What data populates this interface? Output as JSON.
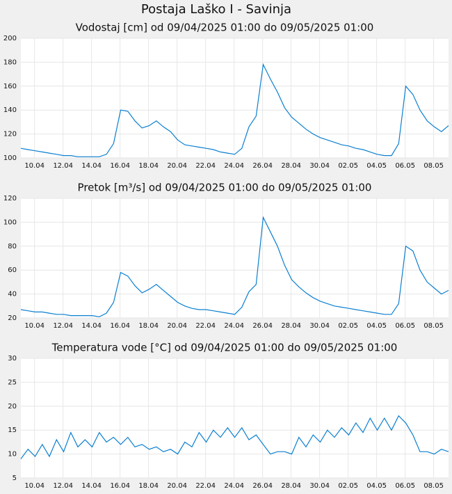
{
  "title": "Postaja Laško I - Savinja",
  "chart_data": [
    {
      "type": "line",
      "title": "Vodostaj [cm] od 09/04/2025 01:00 do 09/05/2025 01:00",
      "color": "#0a7fd0",
      "grid": true,
      "xlim": [
        "09.04 01:00",
        "09.05 01:00"
      ],
      "xticks": [
        "10.04",
        "12.04",
        "14.04",
        "16.04",
        "18.04",
        "20.04",
        "22.04",
        "24.04",
        "26.04",
        "28.04",
        "30.04",
        "02.05",
        "04.05",
        "06.05",
        "08.05"
      ],
      "ylim": [
        100,
        200
      ],
      "yticks": [
        100,
        120,
        140,
        160,
        180,
        200
      ],
      "x": [
        "09.04 01:00",
        "09.04 13:00",
        "10.04 01:00",
        "10.04 13:00",
        "11.04 01:00",
        "11.04 13:00",
        "12.04 01:00",
        "12.04 13:00",
        "13.04 01:00",
        "13.04 13:00",
        "14.04 01:00",
        "14.04 13:00",
        "15.04 01:00",
        "15.04 13:00",
        "16.04 01:00",
        "16.04 13:00",
        "17.04 01:00",
        "17.04 13:00",
        "18.04 01:00",
        "18.04 13:00",
        "19.04 01:00",
        "19.04 13:00",
        "20.04 01:00",
        "20.04 13:00",
        "21.04 01:00",
        "21.04 13:00",
        "22.04 01:00",
        "22.04 13:00",
        "23.04 01:00",
        "23.04 13:00",
        "24.04 01:00",
        "24.04 13:00",
        "25.04 01:00",
        "25.04 13:00",
        "26.04 01:00",
        "26.04 13:00",
        "27.04 01:00",
        "27.04 13:00",
        "28.04 01:00",
        "28.04 13:00",
        "29.04 01:00",
        "29.04 13:00",
        "30.04 01:00",
        "30.04 13:00",
        "01.05 01:00",
        "01.05 13:00",
        "02.05 01:00",
        "02.05 13:00",
        "03.05 01:00",
        "03.05 13:00",
        "04.05 01:00",
        "04.05 13:00",
        "05.05 01:00",
        "05.05 13:00",
        "06.05 01:00",
        "06.05 13:00",
        "07.05 01:00",
        "07.05 13:00",
        "08.05 01:00",
        "08.05 13:00",
        "09.05 01:00"
      ],
      "values": [
        108,
        107,
        106,
        105,
        104,
        103,
        102,
        102,
        101,
        101,
        101,
        101,
        103,
        112,
        140,
        139,
        131,
        125,
        127,
        131,
        126,
        122,
        115,
        111,
        110,
        109,
        108,
        107,
        105,
        104,
        103,
        108,
        126,
        135,
        178,
        166,
        155,
        142,
        134,
        129,
        124,
        120,
        117,
        115,
        113,
        111,
        110,
        108,
        107,
        105,
        103,
        102,
        102,
        112,
        160,
        153,
        140,
        131,
        126,
        122,
        127
      ]
    },
    {
      "type": "line",
      "title": "Pretok [m³/s] od 09/04/2025 01:00 do 09/05/2025 01:00",
      "color": "#0a7fd0",
      "grid": true,
      "xlim": [
        "09.04 01:00",
        "09.05 01:00"
      ],
      "xticks": [
        "10.04",
        "12.04",
        "14.04",
        "16.04",
        "18.04",
        "20.04",
        "22.04",
        "24.04",
        "26.04",
        "28.04",
        "30.04",
        "02.05",
        "04.05",
        "06.05",
        "08.05"
      ],
      "ylim": [
        20,
        120
      ],
      "yticks": [
        20,
        40,
        60,
        80,
        100,
        120
      ],
      "x": [
        "09.04 01:00",
        "09.04 13:00",
        "10.04 01:00",
        "10.04 13:00",
        "11.04 01:00",
        "11.04 13:00",
        "12.04 01:00",
        "12.04 13:00",
        "13.04 01:00",
        "13.04 13:00",
        "14.04 01:00",
        "14.04 13:00",
        "15.04 01:00",
        "15.04 13:00",
        "16.04 01:00",
        "16.04 13:00",
        "17.04 01:00",
        "17.04 13:00",
        "18.04 01:00",
        "18.04 13:00",
        "19.04 01:00",
        "19.04 13:00",
        "20.04 01:00",
        "20.04 13:00",
        "21.04 01:00",
        "21.04 13:00",
        "22.04 01:00",
        "22.04 13:00",
        "23.04 01:00",
        "23.04 13:00",
        "24.04 01:00",
        "24.04 13:00",
        "25.04 01:00",
        "25.04 13:00",
        "26.04 01:00",
        "26.04 13:00",
        "27.04 01:00",
        "27.04 13:00",
        "28.04 01:00",
        "28.04 13:00",
        "29.04 01:00",
        "29.04 13:00",
        "30.04 01:00",
        "30.04 13:00",
        "01.05 01:00",
        "01.05 13:00",
        "02.05 01:00",
        "02.05 13:00",
        "03.05 01:00",
        "03.05 13:00",
        "04.05 01:00",
        "04.05 13:00",
        "05.05 01:00",
        "05.05 13:00",
        "06.05 01:00",
        "06.05 13:00",
        "07.05 01:00",
        "07.05 13:00",
        "08.05 01:00",
        "08.05 13:00",
        "09.05 01:00"
      ],
      "values": [
        27,
        26,
        25,
        25,
        24,
        23,
        23,
        22,
        22,
        22,
        22,
        21,
        24,
        33,
        58,
        55,
        47,
        41,
        44,
        48,
        43,
        38,
        33,
        30,
        28,
        27,
        27,
        26,
        25,
        24,
        23,
        29,
        42,
        48,
        104,
        92,
        80,
        64,
        52,
        46,
        41,
        37,
        34,
        32,
        30,
        29,
        28,
        27,
        26,
        25,
        24,
        23,
        23,
        32,
        80,
        76,
        60,
        50,
        45,
        40,
        43
      ]
    },
    {
      "type": "line",
      "title": "Temperatura vode [°C] od 09/04/2025 01:00 do 09/05/2025 01:00",
      "color": "#0a7fd0",
      "grid": true,
      "xlim": [
        "09.04 01:00",
        "09.05 01:00"
      ],
      "xticks": [
        "10.04",
        "12.04",
        "14.04",
        "16.04",
        "18.04",
        "20.04",
        "22.04",
        "24.04",
        "26.04",
        "28.04",
        "30.04",
        "02.05",
        "04.05",
        "06.05",
        "08.05"
      ],
      "ylim": [
        5,
        30
      ],
      "yticks": [
        5,
        10,
        15,
        20,
        25,
        30
      ],
      "x": [
        "09.04 01:00",
        "09.04 13:00",
        "10.04 01:00",
        "10.04 13:00",
        "11.04 01:00",
        "11.04 13:00",
        "12.04 01:00",
        "12.04 13:00",
        "13.04 01:00",
        "13.04 13:00",
        "14.04 01:00",
        "14.04 13:00",
        "15.04 01:00",
        "15.04 13:00",
        "16.04 01:00",
        "16.04 13:00",
        "17.04 01:00",
        "17.04 13:00",
        "18.04 01:00",
        "18.04 13:00",
        "19.04 01:00",
        "19.04 13:00",
        "20.04 01:00",
        "20.04 13:00",
        "21.04 01:00",
        "21.04 13:00",
        "22.04 01:00",
        "22.04 13:00",
        "23.04 01:00",
        "23.04 13:00",
        "24.04 01:00",
        "24.04 13:00",
        "25.04 01:00",
        "25.04 13:00",
        "26.04 01:00",
        "26.04 13:00",
        "27.04 01:00",
        "27.04 13:00",
        "28.04 01:00",
        "28.04 13:00",
        "29.04 01:00",
        "29.04 13:00",
        "30.04 01:00",
        "30.04 13:00",
        "01.05 01:00",
        "01.05 13:00",
        "02.05 01:00",
        "02.05 13:00",
        "03.05 01:00",
        "03.05 13:00",
        "04.05 01:00",
        "04.05 13:00",
        "05.05 01:00",
        "05.05 13:00",
        "06.05 01:00",
        "06.05 13:00",
        "07.05 01:00",
        "07.05 13:00",
        "08.05 01:00",
        "08.05 13:00",
        "09.05 01:00"
      ],
      "values": [
        9,
        11,
        9.5,
        12,
        9.5,
        13,
        10.5,
        14.5,
        11.5,
        13,
        11.5,
        14.5,
        12.5,
        13.5,
        12,
        13.5,
        11.5,
        12,
        11,
        11.5,
        10.5,
        11,
        10,
        12.5,
        11.5,
        14.5,
        12.5,
        15,
        13.5,
        15.5,
        13.5,
        15.5,
        13,
        14,
        12,
        10,
        10.5,
        10.5,
        10,
        13.5,
        11.5,
        14,
        12.5,
        15,
        13.5,
        15.5,
        14,
        16.5,
        14.5,
        17.5,
        15,
        17.5,
        15,
        18,
        16.5,
        14,
        10.5,
        10.5,
        10,
        11,
        10.5
      ]
    }
  ]
}
